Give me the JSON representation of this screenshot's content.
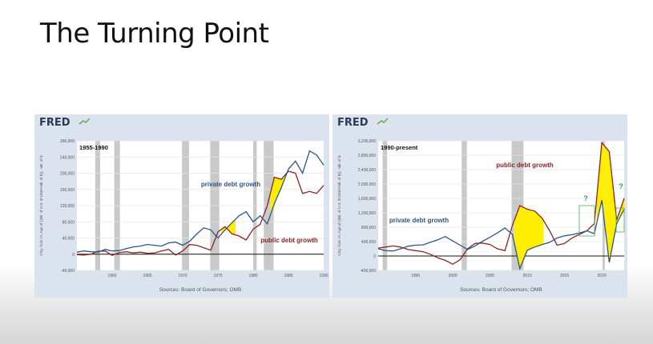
{
  "slide": {
    "title": "The Turning Point"
  },
  "colors": {
    "private": "#2f5582",
    "public": "#8c2424",
    "fill": "#ffee00",
    "recession": "#c9c9c9",
    "brand": "#2b3a55"
  },
  "chart_data": [
    {
      "type": "line",
      "brand": "FRED",
      "period_label": "1955-1990",
      "ylabel": "Chg. from Yr. Ago of ((Bil. of U.S. $*1000+Mil. of $)), -Mil. of $",
      "source": "Sources: Board of Governors; OMB",
      "xlim": [
        1955,
        1990
      ],
      "ylim": [
        -40000,
        280000
      ],
      "yticks": [
        -40000,
        0,
        40000,
        80000,
        120000,
        160000,
        200000,
        240000,
        280000
      ],
      "ytick_labels": [
        "-40,000",
        "0",
        "40,000",
        "80,000",
        "120,000",
        "160,000",
        "200,000",
        "240,000",
        "280,000"
      ],
      "xticks": [
        1960,
        1965,
        1970,
        1975,
        1980,
        1985,
        1990
      ],
      "recessions": [
        [
          1957.6,
          1958.3
        ],
        [
          1960.3,
          1961.1
        ],
        [
          1969.9,
          1970.9
        ],
        [
          1973.9,
          1975.2
        ],
        [
          1980.0,
          1980.5
        ],
        [
          1981.5,
          1982.9
        ]
      ],
      "series": [
        {
          "name": "private debt growth",
          "x": [
            1955,
            1956,
            1957,
            1958,
            1959,
            1960,
            1961,
            1962,
            1963,
            1964,
            1965,
            1966,
            1967,
            1968,
            1969,
            1970,
            1971,
            1972,
            1973,
            1974,
            1975,
            1976,
            1977,
            1978,
            1979,
            1980,
            1981,
            1982,
            1983,
            1984,
            1985,
            1986,
            1987,
            1988,
            1989,
            1990
          ],
          "values": [
            5000,
            8000,
            6000,
            5000,
            12000,
            8000,
            9000,
            14000,
            18000,
            20000,
            24000,
            22000,
            20000,
            28000,
            30000,
            22000,
            32000,
            50000,
            65000,
            60000,
            40000,
            60000,
            78000,
            95000,
            105000,
            80000,
            95000,
            75000,
            125000,
            165000,
            210000,
            230000,
            200000,
            255000,
            245000,
            220000
          ]
        },
        {
          "name": "public debt growth",
          "x": [
            1955,
            1956,
            1957,
            1958,
            1959,
            1960,
            1961,
            1962,
            1963,
            1964,
            1965,
            1966,
            1967,
            1968,
            1969,
            1970,
            1971,
            1972,
            1973,
            1974,
            1975,
            1976,
            1977,
            1978,
            1979,
            1980,
            1981,
            1982,
            1983,
            1984,
            1985,
            1986,
            1987,
            1988,
            1989,
            1990
          ],
          "values": [
            -1000,
            -2000,
            0,
            7000,
            8000,
            -3000,
            4000,
            6000,
            3000,
            5000,
            2000,
            3000,
            8000,
            12000,
            -2000,
            8000,
            24000,
            22000,
            16000,
            10000,
            55000,
            68000,
            50000,
            45000,
            35000,
            62000,
            74000,
            120000,
            190000,
            185000,
            205000,
            200000,
            150000,
            155000,
            150000,
            170000
          ]
        }
      ],
      "annotations": [
        "private debt growth",
        "public debt growth"
      ]
    },
    {
      "type": "line",
      "brand": "FRED",
      "period_label": "1990-present",
      "ylabel": "Chg. from Yr. Ago of ((Bil. of U.S. $*1000+Mil. of $)), -Mil. of $",
      "source": "Sources: Board of Governors; OMB",
      "xlim": [
        1990,
        2023
      ],
      "ylim": [
        -400000,
        3200000
      ],
      "yticks": [
        -400000,
        0,
        400000,
        800000,
        1200000,
        1600000,
        2000000,
        2400000,
        2800000,
        3200000
      ],
      "ytick_labels": [
        "-400,000",
        "0",
        "400,000",
        "800,000",
        "1,200,000",
        "1,600,000",
        "2,000,000",
        "2,400,000",
        "2,800,000",
        "3,200,000"
      ],
      "xticks": [
        1995,
        2000,
        2005,
        2010,
        2015,
        2020
      ],
      "recessions": [
        [
          1990.6,
          1991.2
        ],
        [
          2001.2,
          2001.9
        ],
        [
          2007.9,
          2009.5
        ],
        [
          2020.1,
          2020.4
        ]
      ],
      "series": [
        {
          "name": "private debt growth",
          "x": [
            1990,
            1991,
            1992,
            1993,
            1994,
            1995,
            1996,
            1997,
            1998,
            1999,
            2000,
            2001,
            2002,
            2003,
            2004,
            2005,
            2006,
            2007,
            2008,
            2009,
            2010,
            2011,
            2012,
            2013,
            2014,
            2015,
            2016,
            2017,
            2018,
            2019,
            2020,
            2021,
            2022,
            2023
          ],
          "values": [
            200000,
            150000,
            140000,
            200000,
            270000,
            300000,
            310000,
            380000,
            450000,
            540000,
            420000,
            300000,
            180000,
            280000,
            410000,
            520000,
            640000,
            780000,
            600000,
            -350000,
            160000,
            250000,
            320000,
            380000,
            500000,
            560000,
            590000,
            640000,
            700000,
            620000,
            1550000,
            -180000,
            900000,
            1300000
          ]
        },
        {
          "name": "public debt growth",
          "x": [
            1990,
            1991,
            1992,
            1993,
            1994,
            1995,
            1996,
            1997,
            1998,
            1999,
            2000,
            2001,
            2002,
            2003,
            2004,
            2005,
            2006,
            2007,
            2008,
            2009,
            2010,
            2011,
            2012,
            2013,
            2014,
            2015,
            2016,
            2017,
            2018,
            2019,
            2020,
            2021,
            2022,
            2023
          ],
          "values": [
            220000,
            250000,
            280000,
            250000,
            180000,
            150000,
            120000,
            50000,
            -50000,
            -120000,
            -230000,
            -100000,
            200000,
            350000,
            360000,
            320000,
            200000,
            150000,
            850000,
            1400000,
            1300000,
            1250000,
            1050000,
            700000,
            300000,
            350000,
            500000,
            600000,
            700000,
            900000,
            3150000,
            2900000,
            1000000,
            1600000
          ]
        }
      ],
      "annotations": [
        "private debt growth",
        "public debt growth",
        "?",
        "?"
      ]
    }
  ]
}
